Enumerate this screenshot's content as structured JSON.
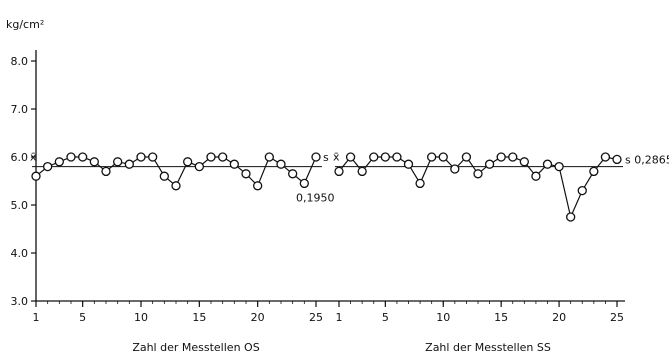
{
  "chart_data": [
    {
      "type": "line",
      "ylabel": "kg/cm²",
      "xlabel": "Zahl der Messtellen OS",
      "ylim": [
        3.0,
        8.4
      ],
      "y_ticks": [
        "3.0",
        "4.0",
        "5.0",
        "6.0",
        "7.0",
        "8.0"
      ],
      "x_ticks": [
        "1",
        "5",
        "10",
        "15",
        "20",
        "25"
      ],
      "x": [
        1,
        2,
        3,
        4,
        5,
        6,
        7,
        8,
        9,
        10,
        11,
        12,
        13,
        14,
        15,
        16,
        17,
        18,
        19,
        20,
        21,
        22,
        23,
        24,
        25
      ],
      "series": [
        {
          "values": [
            5.6,
            5.8,
            5.9,
            6.0,
            6.0,
            5.9,
            5.7,
            5.9,
            5.85,
            6.0,
            6.0,
            5.6,
            5.4,
            5.9,
            5.8,
            6.0,
            6.0,
            5.85,
            5.65,
            5.4,
            6.0,
            5.85,
            5.65,
            5.45,
            6.0
          ]
        }
      ],
      "mean": 5.8,
      "mean_label": "x̄",
      "s_label": "s",
      "s_value": "0,1950",
      "grid": false
    },
    {
      "type": "line",
      "xlabel": "Zahl der Messtellen SS",
      "x_ticks": [
        "1",
        "5",
        "10",
        "15",
        "20",
        "25"
      ],
      "x": [
        1,
        2,
        3,
        4,
        5,
        6,
        7,
        8,
        9,
        10,
        11,
        12,
        13,
        14,
        15,
        16,
        17,
        18,
        19,
        20,
        21,
        22,
        23,
        24,
        25
      ],
      "series": [
        {
          "values": [
            5.7,
            6.0,
            5.7,
            6.0,
            6.0,
            6.0,
            5.85,
            5.45,
            6.0,
            6.0,
            5.75,
            6.0,
            5.65,
            5.85,
            6.0,
            6.0,
            5.9,
            5.6,
            5.85,
            5.8,
            4.75,
            5.3,
            5.7,
            6.0,
            5.95
          ]
        }
      ],
      "mean": 5.8,
      "mean_label": "x̄",
      "s_label": "s",
      "s_value": "0,2865",
      "grid": false
    }
  ]
}
